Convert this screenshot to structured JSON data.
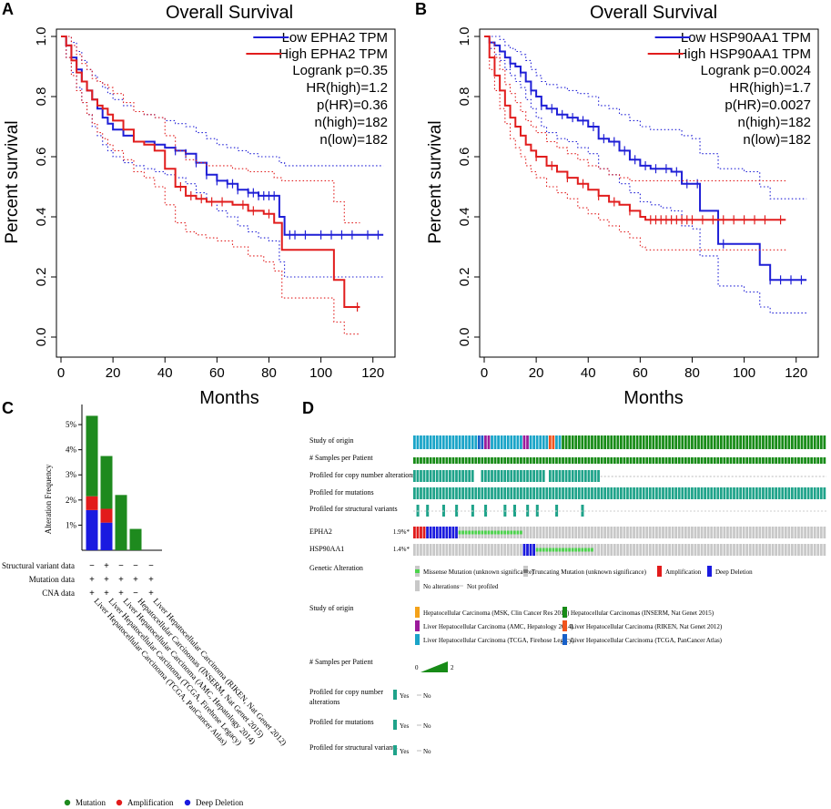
{
  "panel_labels": {
    "a": "A",
    "b": "B",
    "c": "C",
    "d": "D"
  },
  "colors": {
    "low": "#1f1fd6",
    "high": "#e11d1d",
    "mutation": "#1e8a1e",
    "amplification": "#e21b1b",
    "deep_deletion": "#1a1ae0",
    "teal": "#1fa38a",
    "grey": "#c8c8c8",
    "light_green": "#4cd34c",
    "cohort_msk": "#f4a21a",
    "cohort_inserm": "#178b17",
    "cohort_amc": "#9b1b9b",
    "cohort_riken": "#f0541e",
    "cohort_tcga_fh": "#1aa4c8",
    "cohort_tcga_pca": "#1860c8"
  },
  "chart_data": [
    {
      "panel": "A",
      "type": "line",
      "subtype": "kaplan-meier",
      "title": "Overall Survival",
      "xlabel": "Months",
      "ylabel": "Percent survival",
      "xlim": [
        0,
        125
      ],
      "ylim": [
        0,
        1
      ],
      "xticks": [
        "0",
        "20",
        "40",
        "60",
        "80",
        "100",
        "120"
      ],
      "yticks": [
        "0.0",
        "0.2",
        "0.4",
        "0.6",
        "0.8",
        "1.0"
      ],
      "legend": [
        "Low EPHA2 TPM",
        "High EPHA2 TPM"
      ],
      "stats": [
        "Logrank p=0.35",
        "HR(high)=1.2",
        "p(HR)=0.36",
        "n(high)=182",
        "n(low)=182"
      ],
      "series": [
        {
          "name": "Low EPHA2 TPM",
          "color": "#1f1fd6",
          "x": [
            0,
            2,
            4,
            6,
            8,
            10,
            12,
            14,
            16,
            18,
            20,
            24,
            28,
            32,
            36,
            40,
            44,
            48,
            52,
            56,
            60,
            64,
            68,
            72,
            76,
            80,
            84,
            86,
            124
          ],
          "y": [
            1.0,
            0.97,
            0.93,
            0.89,
            0.85,
            0.82,
            0.79,
            0.76,
            0.73,
            0.71,
            0.69,
            0.67,
            0.65,
            0.65,
            0.64,
            0.63,
            0.62,
            0.61,
            0.58,
            0.54,
            0.52,
            0.51,
            0.49,
            0.48,
            0.47,
            0.47,
            0.4,
            0.34,
            0.34
          ],
          "lower": [
            1.0,
            0.93,
            0.88,
            0.83,
            0.78,
            0.74,
            0.7,
            0.67,
            0.64,
            0.62,
            0.6,
            0.58,
            0.57,
            0.56,
            0.55,
            0.54,
            0.53,
            0.51,
            0.48,
            0.45,
            0.42,
            0.4,
            0.37,
            0.35,
            0.33,
            0.32,
            0.25,
            0.2,
            0.2
          ],
          "upper": [
            1.0,
            1.0,
            0.98,
            0.95,
            0.92,
            0.89,
            0.87,
            0.85,
            0.83,
            0.81,
            0.79,
            0.77,
            0.75,
            0.74,
            0.73,
            0.72,
            0.71,
            0.7,
            0.68,
            0.66,
            0.64,
            0.63,
            0.62,
            0.61,
            0.6,
            0.6,
            0.58,
            0.57,
            0.57
          ],
          "censor_x": [
            44,
            48,
            52,
            56,
            60,
            64,
            66,
            68,
            72,
            74,
            76,
            78,
            80,
            82,
            88,
            90,
            94,
            100,
            104,
            108,
            112,
            118,
            122
          ]
        },
        {
          "name": "High EPHA2 TPM",
          "color": "#e11d1d",
          "x": [
            0,
            2,
            4,
            6,
            8,
            10,
            12,
            14,
            16,
            18,
            20,
            24,
            28,
            32,
            36,
            40,
            44,
            48,
            52,
            56,
            60,
            66,
            72,
            78,
            82,
            85,
            105,
            109,
            115
          ],
          "y": [
            1.0,
            0.97,
            0.92,
            0.88,
            0.85,
            0.82,
            0.79,
            0.77,
            0.76,
            0.74,
            0.72,
            0.69,
            0.65,
            0.64,
            0.62,
            0.56,
            0.5,
            0.47,
            0.46,
            0.45,
            0.45,
            0.44,
            0.42,
            0.41,
            0.38,
            0.29,
            0.19,
            0.1,
            0.1
          ],
          "lower": [
            1.0,
            0.93,
            0.87,
            0.82,
            0.78,
            0.74,
            0.71,
            0.68,
            0.66,
            0.64,
            0.62,
            0.59,
            0.55,
            0.53,
            0.5,
            0.44,
            0.38,
            0.35,
            0.34,
            0.33,
            0.32,
            0.3,
            0.27,
            0.25,
            0.22,
            0.13,
            0.05,
            0.01,
            0.01
          ],
          "upper": [
            1.0,
            1.0,
            0.97,
            0.94,
            0.91,
            0.89,
            0.86,
            0.85,
            0.84,
            0.83,
            0.81,
            0.78,
            0.75,
            0.74,
            0.73,
            0.67,
            0.62,
            0.59,
            0.58,
            0.57,
            0.57,
            0.56,
            0.55,
            0.55,
            0.53,
            0.52,
            0.45,
            0.38,
            0.38
          ],
          "censor_x": [
            46,
            50,
            54,
            58,
            62,
            70,
            74,
            80,
            114
          ]
        }
      ]
    },
    {
      "panel": "B",
      "type": "line",
      "subtype": "kaplan-meier",
      "title": "Overall Survival",
      "xlabel": "Months",
      "ylabel": "Percent survival",
      "xlim": [
        0,
        125
      ],
      "ylim": [
        0,
        1
      ],
      "xticks": [
        "0",
        "20",
        "40",
        "60",
        "80",
        "100",
        "120"
      ],
      "yticks": [
        "0.0",
        "0.2",
        "0.4",
        "0.6",
        "0.8",
        "1.0"
      ],
      "legend": [
        "Low HSP90AA1 TPM",
        "High HSP90AA1 TPM"
      ],
      "stats": [
        "Logrank p=0.0024",
        "HR(high)=1.7",
        "p(HR)=0.0027",
        "n(high)=182",
        "n(low)=182"
      ],
      "series": [
        {
          "name": "Low HSP90AA1 TPM",
          "color": "#1f1fd6",
          "x": [
            0,
            2,
            4,
            6,
            8,
            10,
            12,
            14,
            16,
            18,
            20,
            22,
            24,
            28,
            32,
            36,
            40,
            44,
            48,
            52,
            56,
            60,
            64,
            68,
            72,
            76,
            80,
            83,
            90,
            100,
            106,
            110,
            124
          ],
          "y": [
            1.0,
            0.98,
            0.97,
            0.95,
            0.93,
            0.91,
            0.9,
            0.88,
            0.85,
            0.82,
            0.8,
            0.77,
            0.76,
            0.74,
            0.73,
            0.72,
            0.7,
            0.66,
            0.65,
            0.62,
            0.59,
            0.57,
            0.56,
            0.56,
            0.55,
            0.51,
            0.51,
            0.42,
            0.31,
            0.31,
            0.24,
            0.19,
            0.19
          ],
          "lower": [
            1.0,
            0.96,
            0.94,
            0.92,
            0.89,
            0.87,
            0.85,
            0.83,
            0.79,
            0.76,
            0.73,
            0.7,
            0.68,
            0.66,
            0.65,
            0.63,
            0.61,
            0.56,
            0.54,
            0.51,
            0.48,
            0.45,
            0.44,
            0.43,
            0.42,
            0.37,
            0.36,
            0.27,
            0.17,
            0.15,
            0.1,
            0.08,
            0.08
          ],
          "upper": [
            1.0,
            1.0,
            1.0,
            0.99,
            0.97,
            0.96,
            0.95,
            0.94,
            0.92,
            0.89,
            0.87,
            0.85,
            0.84,
            0.83,
            0.82,
            0.81,
            0.8,
            0.77,
            0.76,
            0.74,
            0.72,
            0.7,
            0.69,
            0.69,
            0.69,
            0.67,
            0.66,
            0.61,
            0.56,
            0.55,
            0.5,
            0.46,
            0.46
          ],
          "censor_x": [
            10,
            14,
            18,
            22,
            26,
            30,
            34,
            38,
            42,
            46,
            50,
            54,
            58,
            62,
            66,
            70,
            74,
            78,
            82,
            92,
            110,
            114,
            118,
            122
          ]
        },
        {
          "name": "High HSP90AA1 TPM",
          "color": "#e11d1d",
          "x": [
            0,
            2,
            4,
            6,
            8,
            10,
            12,
            14,
            16,
            18,
            20,
            24,
            28,
            32,
            36,
            40,
            44,
            48,
            52,
            56,
            60,
            62,
            116
          ],
          "y": [
            1.0,
            0.93,
            0.87,
            0.82,
            0.77,
            0.73,
            0.7,
            0.67,
            0.64,
            0.62,
            0.6,
            0.57,
            0.55,
            0.53,
            0.51,
            0.49,
            0.47,
            0.45,
            0.44,
            0.42,
            0.4,
            0.39,
            0.39
          ],
          "lower": [
            1.0,
            0.89,
            0.82,
            0.76,
            0.71,
            0.66,
            0.63,
            0.6,
            0.57,
            0.55,
            0.53,
            0.5,
            0.48,
            0.46,
            0.43,
            0.41,
            0.39,
            0.37,
            0.35,
            0.33,
            0.3,
            0.29,
            0.29
          ],
          "upper": [
            1.0,
            0.98,
            0.93,
            0.89,
            0.84,
            0.81,
            0.78,
            0.75,
            0.72,
            0.7,
            0.68,
            0.65,
            0.63,
            0.61,
            0.59,
            0.57,
            0.56,
            0.54,
            0.53,
            0.52,
            0.52,
            0.52,
            0.52
          ],
          "censor_x": [
            20,
            26,
            32,
            38,
            44,
            50,
            56,
            64,
            66,
            68,
            70,
            72,
            74,
            76,
            78,
            80,
            84,
            88,
            92,
            96,
            100,
            104,
            108,
            114
          ]
        }
      ]
    },
    {
      "panel": "C",
      "type": "bar",
      "stacked": true,
      "ylabel": "Alteration Frequency",
      "ylim": [
        0,
        5.8
      ],
      "yticks": [
        "1%",
        "2%",
        "3%",
        "4%",
        "5%"
      ],
      "categories": [
        "Liver Hepatocellular Carcinoma (TCGA, PanCancer Atlas)",
        "Liver Hepatocellular Carcinoma (TCGA, Firehose Legacy)",
        "Liver Hepatocellular Carcinoma (AMC, Hepatology 2014)",
        "Hepatocellular Carcinomas (INSERM, Nat Genet 2015)",
        "Liver Hepatocellular Carcinoma (RIKEN, Nat Genet 2012)"
      ],
      "series": [
        {
          "name": "Deep Deletion",
          "color": "#1a1ae0",
          "values": [
            1.6,
            1.1,
            0,
            0,
            0
          ]
        },
        {
          "name": "Amplification",
          "color": "#e21b1b",
          "values": [
            0.55,
            0.55,
            0,
            0,
            0
          ]
        },
        {
          "name": "Mutation",
          "color": "#1e8a1e",
          "values": [
            3.2,
            2.1,
            2.2,
            0.85,
            0
          ]
        }
      ],
      "rows": [
        {
          "label": "Structural variant data",
          "cells": [
            "−",
            "+",
            "−",
            "−",
            "−"
          ]
        },
        {
          "label": "Mutation data",
          "cells": [
            "+",
            "+",
            "+",
            "+",
            "+"
          ]
        },
        {
          "label": "CNA data",
          "cells": [
            "+",
            "+",
            "+",
            "−",
            "+"
          ]
        }
      ],
      "legend": [
        "Mutation",
        "Amplification",
        "Deep Deletion"
      ]
    }
  ],
  "oncoprint": {
    "track_labels": [
      "Study of origin",
      "# Samples per Patient",
      "Profiled for copy number alterations",
      "Profiled for mutations",
      "Profiled for structural variants"
    ],
    "genes": [
      {
        "name": "EPHA2",
        "pct": "1.9%*"
      },
      {
        "name": "HSP90AA1",
        "pct": "1.4%*"
      }
    ],
    "genetic_alteration_title": "Genetic Alteration",
    "genetic_alteration_items": [
      "Missense Mutation (unknown significance)",
      "Truncating Mutation (unknown significance)",
      "Amplification",
      "Deep Deletion",
      "No alterations",
      "Not profiled"
    ],
    "study_title": "Study of origin",
    "studies": [
      "Hepatocellular Carcinoma (MSK, Clin Cancer Res 2018)",
      "Hepatocellular Carcinomas (INSERM, Nat Genet 2015)",
      "Liver Hepatocellular Carcinoma (AMC, Hepatology 2014)",
      "Liver Hepatocellular Carcinoma (RIKEN, Nat Genet 2012)",
      "Liver Hepatocellular Carcinoma (TCGA, Firehose Legacy)",
      "Liver Hepatocellular Carcinoma (TCGA, PanCancer Atlas)"
    ],
    "samples_title": "# Samples per Patient",
    "samples_min": "0",
    "samples_max": "2",
    "legend_groups": [
      {
        "title": "Profiled for copy number",
        "title2": "alterations",
        "yes": "Yes",
        "no": "No"
      },
      {
        "title": "Profiled for mutations",
        "title2": "",
        "yes": "Yes",
        "no": "No"
      },
      {
        "title": "Profiled for structural variants",
        "title2": "",
        "yes": "Yes",
        "no": "No"
      }
    ]
  }
}
